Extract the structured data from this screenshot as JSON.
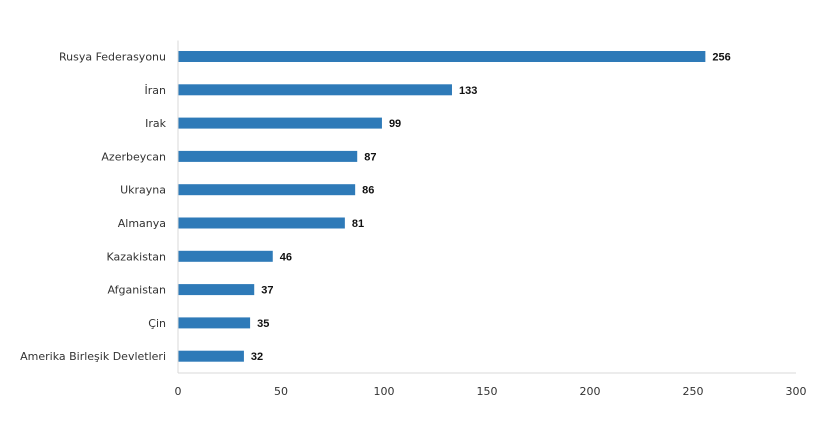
{
  "chart_data": {
    "type": "bar",
    "orientation": "horizontal",
    "categories": [
      "Rusya Federasyonu",
      "İran",
      "Irak",
      "Azerbeycan",
      "Ukrayna",
      "Almanya",
      "Kazakistan",
      "Afganistan",
      "Çin",
      "Amerika Birleşik Devletleri"
    ],
    "values": [
      256,
      133,
      99,
      87,
      86,
      81,
      46,
      37,
      35,
      32
    ],
    "xlim": [
      0,
      300
    ],
    "xticks": [
      0,
      50,
      100,
      150,
      200,
      250,
      300
    ],
    "grid": false,
    "legend": "none",
    "data_labels": true,
    "bar_color": "#2E7AB8"
  }
}
